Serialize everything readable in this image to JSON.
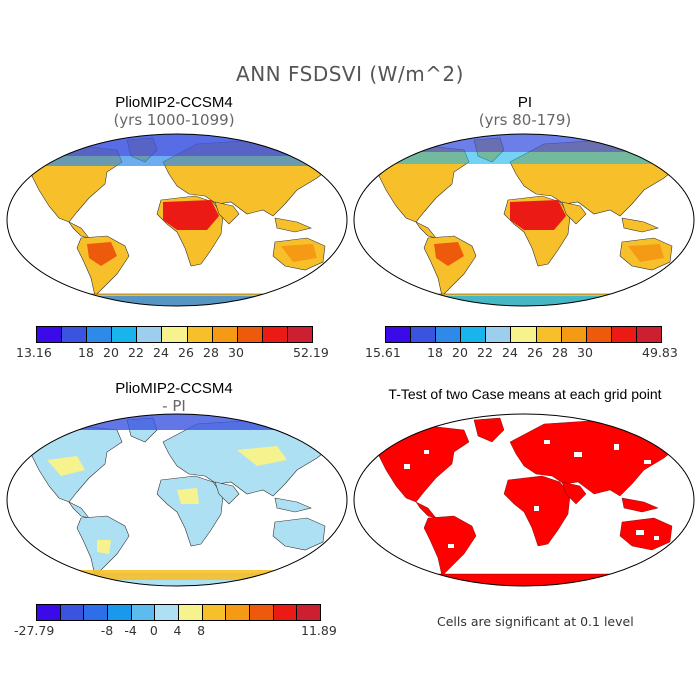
{
  "main_title": "ANN FSDSVI (W/m^2)",
  "panels": {
    "top_left": {
      "title": "PlioMIP2-CCSM4",
      "subtitle": "(yrs 1000-1099)"
    },
    "top_right": {
      "title": "PI",
      "subtitle": "(yrs 80-179)"
    },
    "bottom_left": {
      "title": "PlioMIP2-CCSM4",
      "subtitle": "- PI"
    },
    "bottom_right": {
      "title": "T-Test of two Case means at each grid point"
    }
  },
  "colorbars": {
    "top_left": {
      "colors": [
        "#3a0ae8",
        "#3b54e0",
        "#2e8ae8",
        "#19b4ec",
        "#9ccfee",
        "#f6f28e",
        "#f7c02a",
        "#f59a14",
        "#ee5a0c",
        "#ec1a14",
        "#cc2030"
      ],
      "labels": [
        "13.16",
        "18",
        "20",
        "22",
        "24",
        "26",
        "28",
        "30",
        "52.19"
      ]
    },
    "top_right": {
      "colors": [
        "#3a0ae8",
        "#3b54e0",
        "#2e8ae8",
        "#19b4ec",
        "#9ccfee",
        "#f6f28e",
        "#f7c02a",
        "#f59a14",
        "#ee5a0c",
        "#ec1a14",
        "#cc2030"
      ],
      "labels": [
        "15.61",
        "18",
        "20",
        "22",
        "24",
        "26",
        "28",
        "30",
        "49.83"
      ]
    },
    "bottom_left": {
      "colors": [
        "#3a0ae8",
        "#3b54e0",
        "#2e6ee8",
        "#1a98ec",
        "#5cbcee",
        "#aee0f4",
        "#f6f28e",
        "#f7c02a",
        "#f59a14",
        "#ee5a0c",
        "#ec1a14",
        "#cc2030"
      ],
      "labels": [
        "-27.79",
        "-8",
        "-4",
        "0",
        "4",
        "8",
        "11.89"
      ]
    }
  },
  "significance_note": "Cells are significant at 0.1 level",
  "colors": {
    "significant": "#ff0000"
  }
}
